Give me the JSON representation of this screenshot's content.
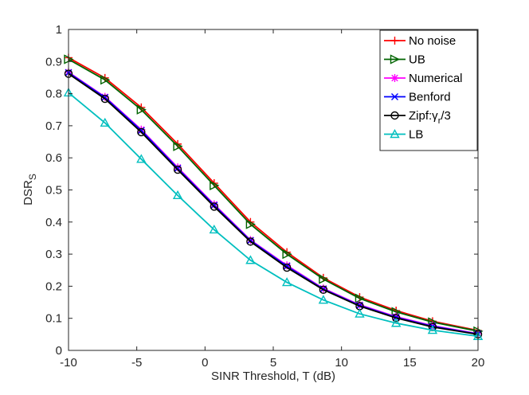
{
  "chart_data": {
    "type": "line",
    "title": "",
    "xlabel": "SINR Threshold, T (dB)",
    "ylabel": "DSR",
    "ylabel_subscript": "S",
    "xlim": [
      -10,
      20
    ],
    "ylim": [
      0,
      1
    ],
    "xticks": [
      -10,
      -5,
      0,
      5,
      10,
      15,
      20
    ],
    "yticks": [
      0,
      0.1,
      0.2,
      0.3,
      0.4,
      0.5,
      0.6,
      0.7,
      0.8,
      0.9,
      1
    ],
    "xtick_labels": [
      "-10",
      "-5",
      "0",
      "5",
      "10",
      "15",
      "20"
    ],
    "ytick_labels": [
      "0",
      "0.1",
      "0.2",
      "0.3",
      "0.4",
      "0.5",
      "0.6",
      "0.7",
      "0.8",
      "0.9",
      "1"
    ],
    "grid": false,
    "legend_position": "top-right",
    "x": [
      -10,
      -7.33,
      -4.67,
      -2,
      0.67,
      3.33,
      6,
      8.67,
      11.33,
      14,
      16.67,
      20
    ],
    "series": [
      {
        "name": "No noise",
        "color": "#ff0000",
        "marker": "plus",
        "values": [
          0.912,
          0.849,
          0.757,
          0.643,
          0.521,
          0.4,
          0.306,
          0.226,
          0.166,
          0.124,
          0.091,
          0.062
        ]
      },
      {
        "name": "UB",
        "color": "#006400",
        "marker": "triangle-right",
        "values": [
          0.907,
          0.843,
          0.75,
          0.636,
          0.514,
          0.393,
          0.3,
          0.222,
          0.162,
          0.12,
          0.088,
          0.06
        ]
      },
      {
        "name": "Numerical",
        "color": "#ff00ff",
        "marker": "asterisk",
        "values": [
          0.867,
          0.79,
          0.688,
          0.57,
          0.455,
          0.344,
          0.265,
          0.193,
          0.142,
          0.105,
          0.077,
          0.052
        ]
      },
      {
        "name": "Benford",
        "color": "#0000ff",
        "marker": "x",
        "values": [
          0.865,
          0.788,
          0.685,
          0.567,
          0.452,
          0.342,
          0.262,
          0.191,
          0.14,
          0.103,
          0.075,
          0.051
        ]
      },
      {
        "name": "Zipf:γ_r/3",
        "legend_main": "Zipf:γ",
        "legend_sub": "r",
        "legend_tail": "/3",
        "color": "#000000",
        "marker": "circle",
        "values": [
          0.862,
          0.784,
          0.68,
          0.563,
          0.448,
          0.339,
          0.258,
          0.189,
          0.138,
          0.101,
          0.073,
          0.05
        ]
      },
      {
        "name": "LB",
        "color": "#00bfbf",
        "marker": "triangle-up",
        "values": [
          0.803,
          0.709,
          0.596,
          0.483,
          0.376,
          0.281,
          0.212,
          0.157,
          0.114,
          0.085,
          0.063,
          0.044
        ]
      }
    ]
  }
}
